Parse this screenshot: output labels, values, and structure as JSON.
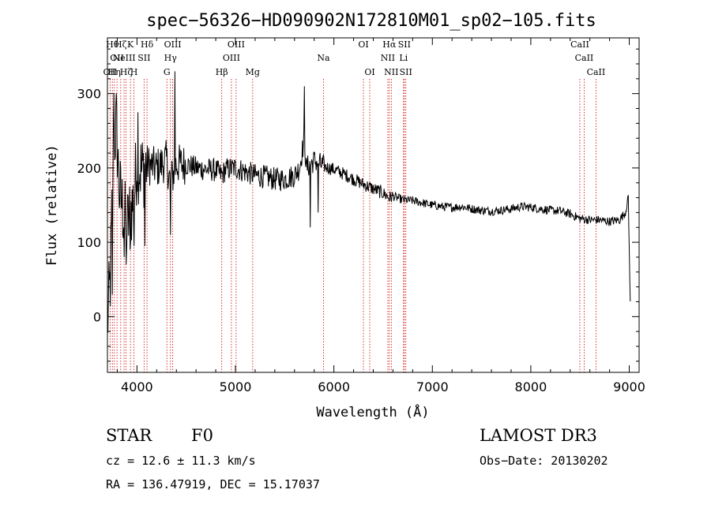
{
  "chart_data": {
    "type": "line",
    "title": "spec−56326−HD090902N172810M01_sp02−105.fits",
    "xlabel": "Wavelength (Å)",
    "ylabel": "Flux (relative)",
    "xlim": [
      3700,
      9100
    ],
    "ylim": [
      -75,
      375
    ],
    "x_ticks": [
      4000,
      5000,
      6000,
      7000,
      8000,
      9000
    ],
    "y_ticks": [
      0,
      100,
      200,
      300
    ],
    "spectrum_anchors": {
      "x": [
        3700,
        3730,
        3760,
        3790,
        3820,
        3850,
        3880,
        3900,
        3930,
        3970,
        4000,
        4050,
        4100,
        4200,
        4300,
        4340,
        4400,
        4500,
        4600,
        4700,
        4800,
        4861,
        4900,
        5000,
        5100,
        5200,
        5300,
        5400,
        5500,
        5600,
        5650,
        5700,
        5720,
        5760,
        5800,
        5900,
        6000,
        6100,
        6200,
        6300,
        6400,
        6500,
        6563,
        6600,
        6700,
        6800,
        6900,
        7000,
        7100,
        7200,
        7300,
        7400,
        7500,
        7600,
        7700,
        7800,
        7900,
        8000,
        8100,
        8200,
        8300,
        8400,
        8500,
        8600,
        8700,
        8800,
        8900,
        8960,
        8990,
        9000,
        9010
      ],
      "y": [
        -10,
        50,
        220,
        260,
        170,
        150,
        130,
        120,
        140,
        160,
        210,
        195,
        205,
        200,
        210,
        180,
        205,
        205,
        200,
        198,
        197,
        190,
        198,
        200,
        195,
        190,
        188,
        185,
        185,
        190,
        200,
        240,
        200,
        205,
        210,
        202,
        198,
        192,
        185,
        178,
        172,
        166,
        160,
        162,
        157,
        156,
        153,
        150,
        148,
        147,
        148,
        145,
        143,
        142,
        143,
        145,
        148,
        147,
        145,
        143,
        142,
        138,
        132,
        130,
        130,
        128,
        130,
        140,
        160,
        90,
        20
      ],
      "spikes": [
        {
          "x": 3750,
          "y": 30
        },
        {
          "x": 3765,
          "y": 300
        },
        {
          "x": 3870,
          "y": 80
        },
        {
          "x": 3890,
          "y": 70
        },
        {
          "x": 3930,
          "y": 90
        },
        {
          "x": 3970,
          "y": 95
        },
        {
          "x": 4010,
          "y": 275
        },
        {
          "x": 4080,
          "y": 95
        },
        {
          "x": 4340,
          "y": 110
        },
        {
          "x": 4385,
          "y": 330
        },
        {
          "x": 5700,
          "y": 310
        },
        {
          "x": 5760,
          "y": 120
        },
        {
          "x": 5840,
          "y": 140
        }
      ]
    },
    "emission_lines": [
      {
        "x": 3727,
        "label": "OII",
        "row": 2
      },
      {
        "x": 3750,
        "label": "Hθ",
        "row": 0
      },
      {
        "x": 3770,
        "label": "Hη",
        "row": 2
      },
      {
        "x": 3797,
        "label": "OII",
        "row": 1
      },
      {
        "x": 3835,
        "label": "Hζ",
        "row": 0
      },
      {
        "x": 3869,
        "label": "NeIII",
        "row": 1
      },
      {
        "x": 3889,
        "label": "Hζ",
        "row": 2
      },
      {
        "x": 3934,
        "label": "K",
        "row": 0
      },
      {
        "x": 3969,
        "label": "H",
        "row": 2
      },
      {
        "x": 4072,
        "label": "SII",
        "row": 1
      },
      {
        "x": 4102,
        "label": "Hδ",
        "row": 0
      },
      {
        "x": 4304,
        "label": "G",
        "row": 2
      },
      {
        "x": 4340,
        "label": "Hγ",
        "row": 1
      },
      {
        "x": 4363,
        "label": "OIII",
        "row": 0
      },
      {
        "x": 4861,
        "label": "Hβ",
        "row": 2
      },
      {
        "x": 4959,
        "label": "OIII",
        "row": 1
      },
      {
        "x": 5007,
        "label": "OIII",
        "row": 0
      },
      {
        "x": 5175,
        "label": "Mg",
        "row": 2
      },
      {
        "x": 5894,
        "label": "Na",
        "row": 1
      },
      {
        "x": 6300,
        "label": "OI",
        "row": 0
      },
      {
        "x": 6364,
        "label": "OI",
        "row": 2
      },
      {
        "x": 6548,
        "label": "NII",
        "row": 1
      },
      {
        "x": 6563,
        "label": "Hα",
        "row": 0
      },
      {
        "x": 6583,
        "label": "NII",
        "row": 2
      },
      {
        "x": 6707,
        "label": "Li",
        "row": 1
      },
      {
        "x": 6716,
        "label": "SII",
        "row": 0
      },
      {
        "x": 6731,
        "label": "SII",
        "row": 2
      },
      {
        "x": 8498,
        "label": "CaII",
        "row": 0
      },
      {
        "x": 8542,
        "label": "CaII",
        "row": 1
      },
      {
        "x": 8662,
        "label": "CaII",
        "row": 2
      }
    ]
  },
  "info": {
    "object_type": "STAR",
    "subclass": "F0",
    "survey": "LAMOST DR3",
    "cz": "cz = 12.6 ± 11.3 km/s",
    "obs_date": "Obs−Date: 20130202",
    "coords": "RA = 136.47919, DEC =  15.17037"
  }
}
